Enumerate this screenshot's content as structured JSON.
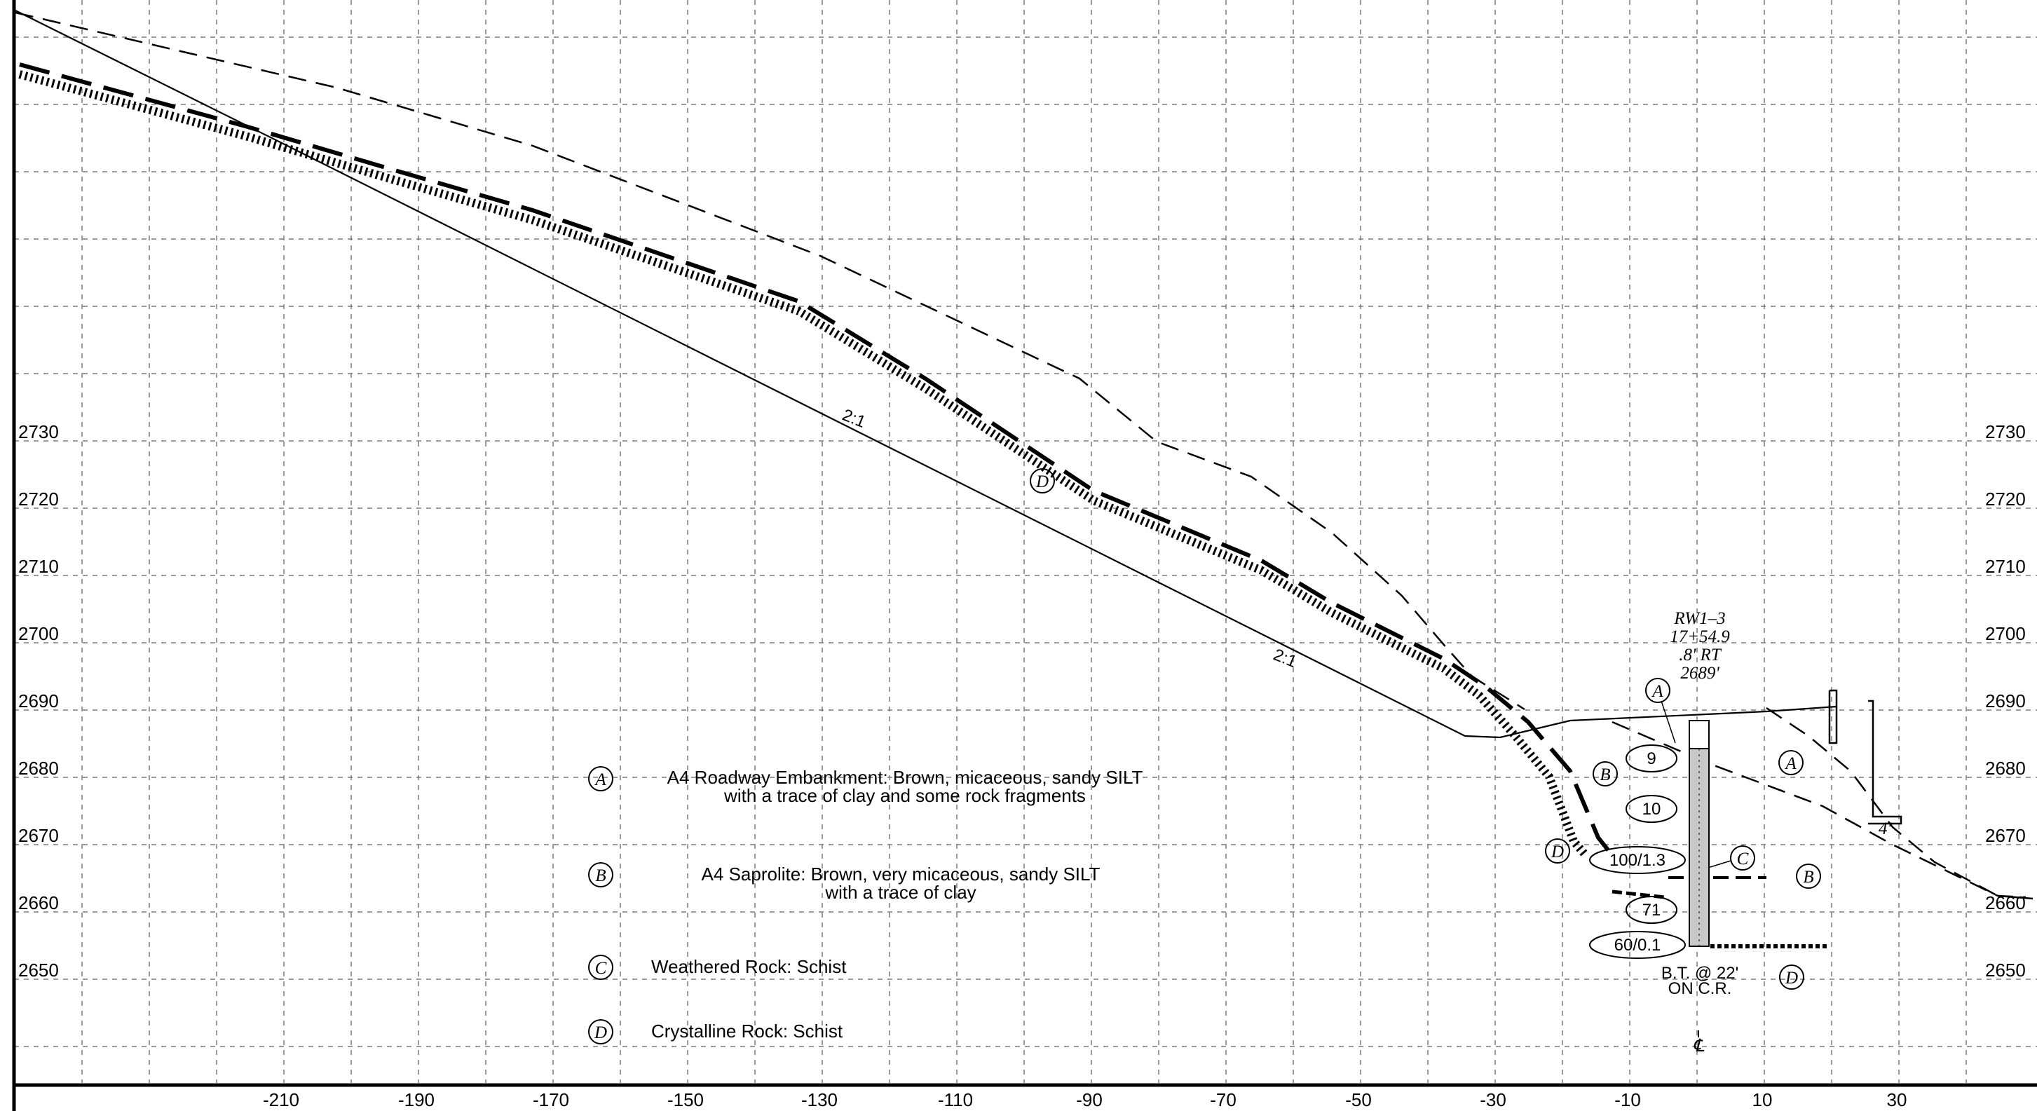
{
  "elevation_labels": [
    "2730",
    "2720",
    "2710",
    "2700",
    "2690",
    "2680",
    "2670",
    "2660",
    "2650"
  ],
  "station_labels": [
    "-210",
    "-190",
    "-170",
    "-150",
    "-130",
    "-110",
    "-90",
    "-70",
    "-50",
    "-30",
    "-10",
    "10",
    "30"
  ],
  "slope_labels": [
    "2:1",
    "2:1"
  ],
  "layer_tags": {
    "a": "A",
    "b": "B",
    "c": "C",
    "d": "D"
  },
  "legend": [
    {
      "tag": "A",
      "line1": "A4 Roadway Embankment: Brown, micaceous, sandy SILT",
      "line2": "with a trace of clay and some rock fragments"
    },
    {
      "tag": "B",
      "line1": "A4 Saprolite: Brown, very micaceous, sandy SILT",
      "line2": "with a trace of clay"
    },
    {
      "tag": "C",
      "line1": "Weathered Rock: Schist",
      "line2": ""
    },
    {
      "tag": "D",
      "line1": "Crystalline Rock: Schist",
      "line2": ""
    }
  ],
  "boring": {
    "id": "RW1–3",
    "station": "17+54.9",
    "offset": ".8' RT",
    "elevation": "2689'",
    "blow_counts": [
      "9",
      "10",
      "100/1.3",
      "71",
      "60/0.1"
    ],
    "termination_line1": "B.T. @ 22'",
    "termination_line2": "ON C.R.",
    "centerline_symbol": "℄"
  },
  "wall_label": "4'",
  "colors": {
    "line": "#000000",
    "grid": "#7a7a7a",
    "background": "#ffffff"
  }
}
